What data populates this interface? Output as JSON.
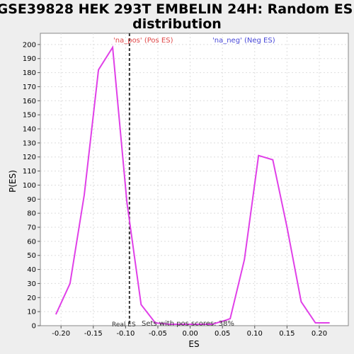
{
  "chart_data": {
    "type": "line",
    "title_line1": "GSE39828 HEK 293T EMBELIN 24H: Random ES",
    "title_line2": "distribution",
    "xlabel": "ES",
    "ylabel": "P(ES)",
    "xlim": [
      -0.232,
      0.245
    ],
    "ylim": [
      0,
      208
    ],
    "x_ticks": [
      -0.2,
      -0.15,
      -0.1,
      -0.05,
      0.0,
      0.05,
      0.1,
      0.15,
      0.2
    ],
    "x_tick_labels": [
      "-0.20",
      "-0.15",
      "-0.10",
      "-0.05",
      "0.00",
      "0.05",
      "0.10",
      "0.15",
      "0.20"
    ],
    "y_ticks": [
      0,
      10,
      20,
      30,
      40,
      50,
      60,
      70,
      80,
      90,
      100,
      110,
      120,
      130,
      140,
      150,
      160,
      170,
      180,
      190,
      200
    ],
    "grid": true,
    "series": [
      {
        "color": "#e040e8",
        "x": [
          -0.208,
          -0.186,
          -0.164,
          -0.142,
          -0.12,
          -0.098,
          -0.076,
          -0.054,
          -0.032,
          -0.01,
          0.012,
          0.034,
          0.056,
          0.062,
          0.084,
          0.106,
          0.128,
          0.15,
          0.172,
          0.194,
          0.216
        ],
        "y": [
          8,
          30,
          93,
          182,
          198,
          88,
          15,
          2,
          1,
          1,
          1,
          1,
          4,
          5,
          47,
          121,
          118,
          70,
          17,
          2,
          2
        ]
      }
    ],
    "vline": {
      "x": -0.094,
      "label": "Real ES"
    },
    "annotations": {
      "pos": {
        "text": "'na_pos' (Pos ES)",
        "color": "#e04848"
      },
      "neg": {
        "text": "'na_neg' (Neg ES)",
        "color": "#4848d8"
      },
      "sets": {
        "text": "Sets with pos scores: 38%"
      }
    }
  }
}
